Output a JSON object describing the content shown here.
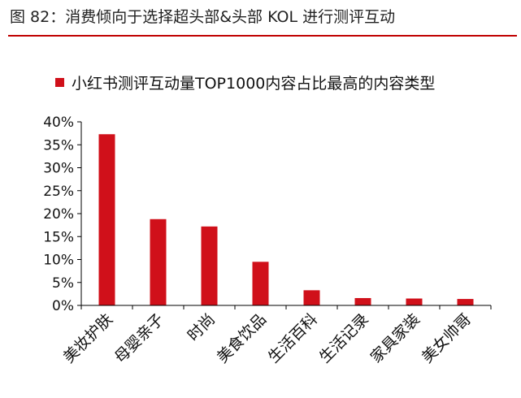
{
  "figure": {
    "title": "图 82：消费倾向于选择超头部&头部 KOL 进行测评互动"
  },
  "colors": {
    "accent": "#c00000",
    "bar": "#d0101a",
    "axis": "#000000"
  },
  "chart_data": {
    "type": "bar",
    "title": "",
    "legend": [
      "小红书测评互动量TOP1000内容占比最高的内容类型"
    ],
    "legend_position": "top",
    "series": [
      {
        "name": "小红书测评互动量TOP1000内容占比最高的内容类型",
        "values": [
          37.3,
          18.8,
          17.2,
          9.5,
          3.3,
          1.6,
          1.5,
          1.4
        ]
      }
    ],
    "categories": [
      "美妆护肤",
      "母婴亲子",
      "时尚",
      "美食饮品",
      "生活百科",
      "生活记录",
      "家具家装",
      "美女帅哥"
    ],
    "yticks": [
      "0%",
      "5%",
      "10%",
      "15%",
      "20%",
      "25%",
      "30%",
      "35%",
      "40%"
    ],
    "ylim": [
      0,
      40
    ],
    "xlabel": "",
    "ylabel": "",
    "grid": false
  }
}
